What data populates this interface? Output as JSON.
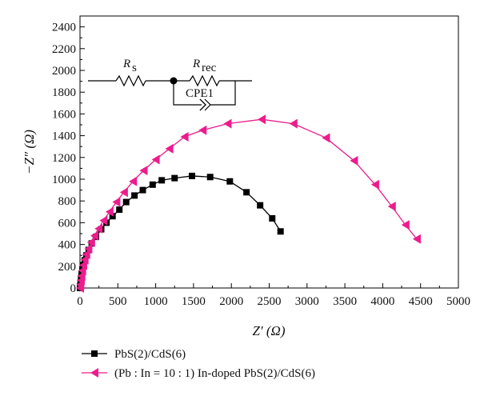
{
  "chart_data": {
    "type": "scatter",
    "title": "",
    "xlabel": "Z′ (Ω)",
    "ylabel": "−Z″ (Ω)",
    "xlim": [
      0,
      5000
    ],
    "ylim": [
      0,
      2500
    ],
    "xticks": [
      0,
      500,
      1000,
      1500,
      2000,
      2500,
      3000,
      3500,
      4000,
      4500,
      5000
    ],
    "yticks": [
      0,
      200,
      400,
      600,
      800,
      1000,
      1200,
      1400,
      1600,
      1800,
      2000,
      2200,
      2400
    ],
    "grid": false,
    "legend_position": "below plot",
    "series": [
      {
        "name": "PbS(2)/CdS(6)",
        "marker": "square",
        "color": "#000000",
        "x": [
          0,
          3,
          8,
          14,
          22,
          32,
          45,
          62,
          85,
          115,
          155,
          210,
          280,
          350,
          430,
          520,
          610,
          720,
          830,
          960,
          1080,
          1250,
          1480,
          1720,
          1980,
          2200,
          2380,
          2540,
          2650
        ],
        "y": [
          0,
          20,
          50,
          90,
          130,
          170,
          210,
          255,
          300,
          350,
          410,
          470,
          540,
          600,
          660,
          720,
          790,
          850,
          900,
          950,
          990,
          1010,
          1030,
          1020,
          980,
          880,
          760,
          640,
          520
        ]
      },
      {
        "name": "(Pb : In = 10 : 1) In-doped PbS(2)/CdS(6)",
        "marker": "triangle-left",
        "color": "#ec1c8c",
        "x": [
          0,
          4,
          10,
          18,
          28,
          42,
          60,
          82,
          110,
          145,
          190,
          245,
          310,
          390,
          480,
          580,
          700,
          840,
          1000,
          1180,
          1380,
          1620,
          1950,
          2400,
          2820,
          3250,
          3620,
          3900,
          4120,
          4300,
          4450
        ],
        "y": [
          0,
          30,
          70,
          110,
          160,
          210,
          260,
          310,
          360,
          420,
          480,
          545,
          620,
          700,
          790,
          880,
          980,
          1080,
          1180,
          1280,
          1390,
          1450,
          1510,
          1550,
          1510,
          1380,
          1170,
          950,
          750,
          580,
          450
        ]
      }
    ],
    "inset": {
      "components": [
        "R",
        "s",
        "R",
        "rec",
        "CPE1"
      ]
    }
  }
}
